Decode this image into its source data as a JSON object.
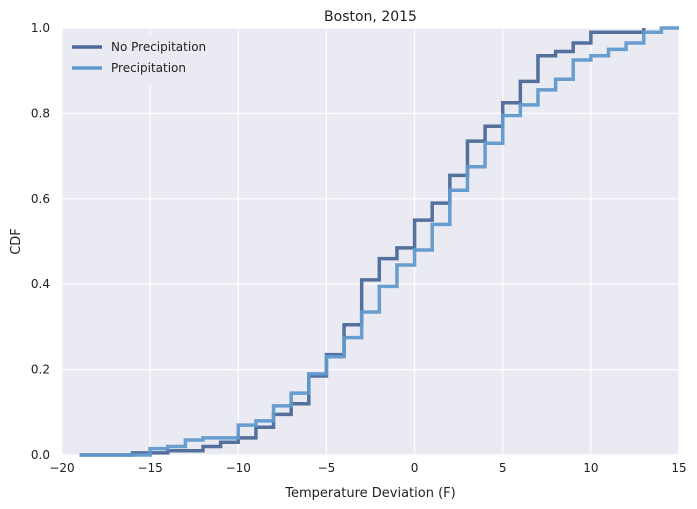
{
  "chart_data": {
    "type": "line",
    "step": true,
    "title": "Boston, 2015",
    "xlabel": "Temperature Deviation (F)",
    "ylabel": "CDF",
    "xlim": [
      -20,
      15
    ],
    "ylim": [
      0,
      1.0
    ],
    "xticks": [
      "−20",
      "−15",
      "−10",
      "−5",
      "0",
      "5",
      "10",
      "15"
    ],
    "xtick_values": [
      -20,
      -15,
      -10,
      -5,
      0,
      5,
      10,
      15
    ],
    "yticks": [
      "0.0",
      "0.2",
      "0.4",
      "0.6",
      "0.8",
      "1.0"
    ],
    "ytick_values": [
      0,
      0.2,
      0.4,
      0.6,
      0.8,
      1.0
    ],
    "grid": true,
    "legend_position": "top-left",
    "series": [
      {
        "name": "No Precipitation",
        "color": "#4c6a99",
        "x": [
          -16,
          -15,
          -14,
          -13,
          -12,
          -11,
          -10,
          -9,
          -8,
          -7,
          -6,
          -5,
          -4,
          -3,
          -2,
          -1,
          0,
          1,
          2,
          3,
          4,
          5,
          6,
          7,
          8,
          9,
          10,
          11,
          12,
          13
        ],
        "y": [
          0.005,
          0.005,
          0.01,
          0.01,
          0.02,
          0.03,
          0.04,
          0.065,
          0.095,
          0.12,
          0.185,
          0.235,
          0.305,
          0.41,
          0.46,
          0.485,
          0.55,
          0.59,
          0.655,
          0.735,
          0.77,
          0.825,
          0.875,
          0.935,
          0.945,
          0.965,
          0.99,
          0.99,
          0.99,
          1.0
        ],
        "x_start": -19,
        "x_end": 13
      },
      {
        "name": "Precipitation",
        "color": "#6199cc",
        "x": [
          -15,
          -14,
          -13,
          -12,
          -11,
          -10,
          -9,
          -8,
          -7,
          -6,
          -5,
          -4,
          -3,
          -2,
          -1,
          0,
          1,
          2,
          3,
          4,
          5,
          6,
          7,
          8,
          9,
          10,
          11,
          12,
          13,
          14
        ],
        "y": [
          0.015,
          0.02,
          0.035,
          0.04,
          0.04,
          0.07,
          0.08,
          0.115,
          0.145,
          0.19,
          0.23,
          0.275,
          0.335,
          0.395,
          0.445,
          0.48,
          0.54,
          0.62,
          0.675,
          0.73,
          0.795,
          0.82,
          0.855,
          0.88,
          0.925,
          0.935,
          0.95,
          0.965,
          0.99,
          1.0
        ],
        "x_start": -19,
        "x_end": 15
      }
    ]
  }
}
